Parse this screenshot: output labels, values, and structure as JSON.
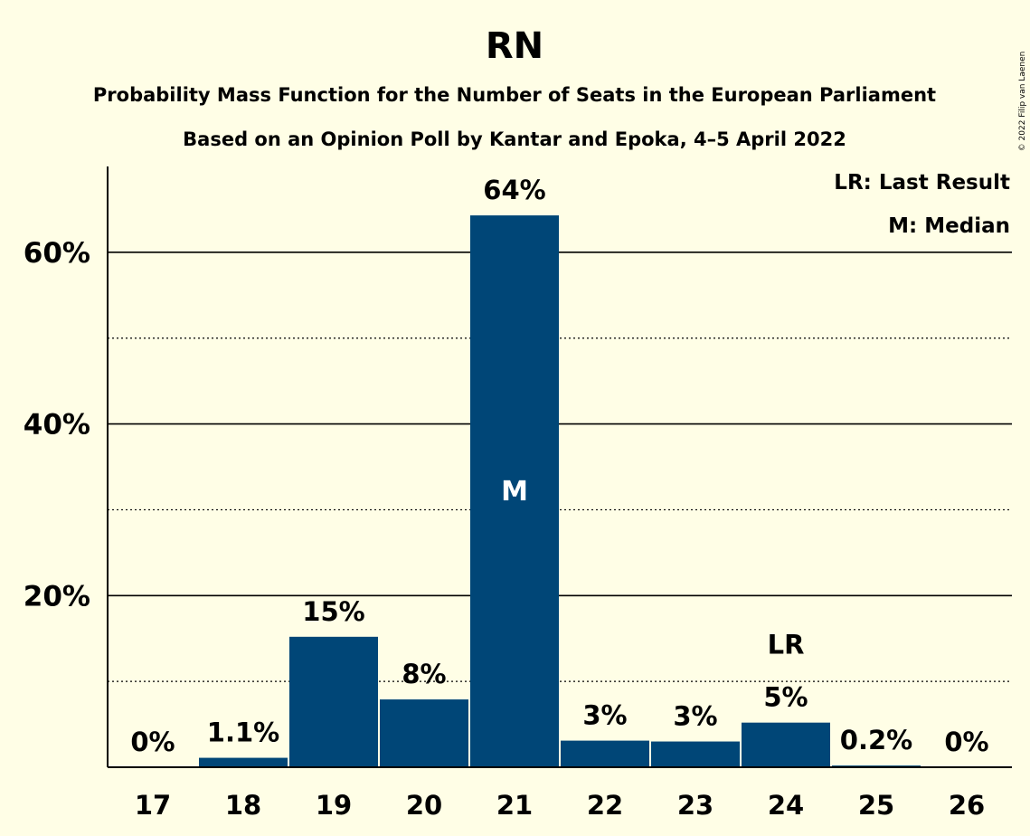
{
  "chart_data": {
    "type": "bar",
    "title": "RN",
    "subtitle": "Probability Mass Function for the Number of Seats in the European Parliament",
    "subtitle2": "Based on an Opinion Poll by Kantar and Epoka, 4–5 April 2022",
    "credit": "© 2022 Filip van Laenen",
    "categories": [
      "17",
      "18",
      "19",
      "20",
      "21",
      "22",
      "23",
      "24",
      "25",
      "26"
    ],
    "values": [
      0,
      1.1,
      15.2,
      7.9,
      64.3,
      3.1,
      3.0,
      5.2,
      0.2,
      0
    ],
    "data_labels": [
      "0%",
      "1.1%",
      "15%",
      "8%",
      "64%",
      "3%",
      "3%",
      "5%",
      "0.2%",
      "0%"
    ],
    "ylim": [
      0,
      70
    ],
    "yticks_major": [
      20,
      40,
      60
    ],
    "yticks_major_labels": [
      "20%",
      "40%",
      "60%"
    ],
    "yticks_minor": [
      10,
      30,
      50
    ],
    "median_index": 4,
    "median_label": "M",
    "last_result_index": 7,
    "last_result_label": "LR",
    "legend": [
      "LR: Last Result",
      "M: Median"
    ],
    "legend_position": "top-right",
    "bar_color": "#004677",
    "background_color": "#FFFEE6"
  }
}
